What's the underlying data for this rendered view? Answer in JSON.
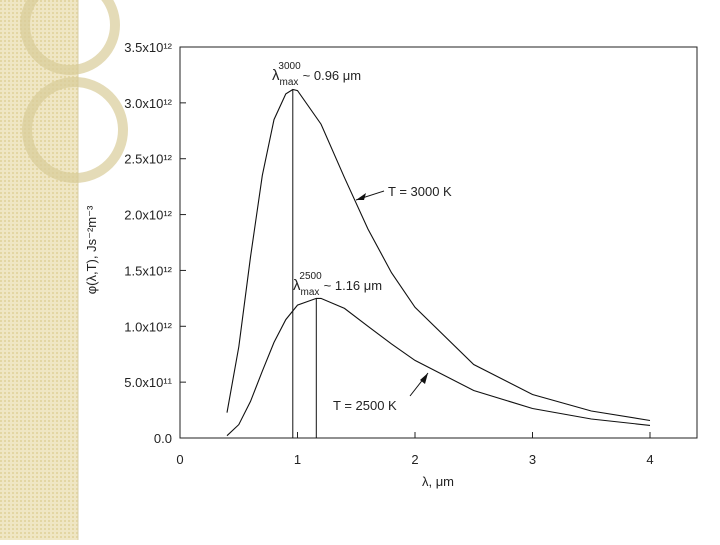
{
  "chart_data": {
    "type": "line",
    "x_label": "λ, μm",
    "y_label": "φ(λ,T), Js⁻²m⁻³",
    "xlim": [
      0,
      4.4
    ],
    "xticks": [
      0,
      1,
      2,
      3,
      4
    ],
    "ylim": [
      0,
      3500000000000.0
    ],
    "yticks": [
      {
        "value": 0,
        "label": "0.0"
      },
      {
        "value": 500000000000.0,
        "label": "5.0x10¹¹"
      },
      {
        "value": 1000000000000.0,
        "label": "1.0x10¹²"
      },
      {
        "value": 1500000000000.0,
        "label": "1.5x10¹²"
      },
      {
        "value": 2000000000000.0,
        "label": "2.0x10¹²"
      },
      {
        "value": 2500000000000.0,
        "label": "2.5x10¹²"
      },
      {
        "value": 3000000000000.0,
        "label": "3.0x10¹²"
      },
      {
        "value": 3500000000000.0,
        "label": "3.5x10¹²"
      }
    ],
    "series": [
      {
        "name": "T = 3000 K",
        "color": "#111111",
        "x": [
          0.4,
          0.5,
          0.6,
          0.7,
          0.8,
          0.9,
          0.96,
          1.0,
          1.2,
          1.4,
          1.6,
          1.8,
          2.0,
          2.5,
          3.0,
          3.5,
          4.0
        ],
        "values": [
          227000000000.0,
          816000000000.0,
          1620000000000.0,
          2350000000000.0,
          2850000000000.0,
          3080000000000.0,
          3120000000000.0,
          3110000000000.0,
          2810000000000.0,
          2330000000000.0,
          1870000000000.0,
          1480000000000.0,
          1170000000000.0,
          658000000000.0,
          389000000000.0,
          242000000000.0,
          157000000000.0
        ]
      },
      {
        "name": "T = 2500 K",
        "color": "#111111",
        "x": [
          0.4,
          0.5,
          0.6,
          0.7,
          0.8,
          0.9,
          1.0,
          1.16,
          1.2,
          1.4,
          1.6,
          1.8,
          2.0,
          2.5,
          3.0,
          3.5,
          4.0
        ],
        "values": [
          20600000000.0,
          120000000000.0,
          328000000000.0,
          598000000000.0,
          856000000000.0,
          1060000000000.0,
          1190000000000.0,
          1250000000000.0,
          1250000000000.0,
          1160000000000.0,
          1000000000000.0,
          842000000000.0,
          695000000000.0,
          425000000000.0,
          264000000000.0,
          170000000000.0,
          113000000000.0
        ]
      }
    ],
    "markers": [
      {
        "x": 0.96,
        "y": 3120000000000.0
      },
      {
        "x": 1.16,
        "y": 1250000000000.0
      }
    ],
    "annotations": [
      {
        "symbol": "λ",
        "sub": "max",
        "sup": "3000",
        "text": "~ 0.96 μm"
      },
      {
        "symbol": "λ",
        "sub": "max",
        "sup": "2500",
        "text": "~ 1.16 μm"
      }
    ]
  }
}
